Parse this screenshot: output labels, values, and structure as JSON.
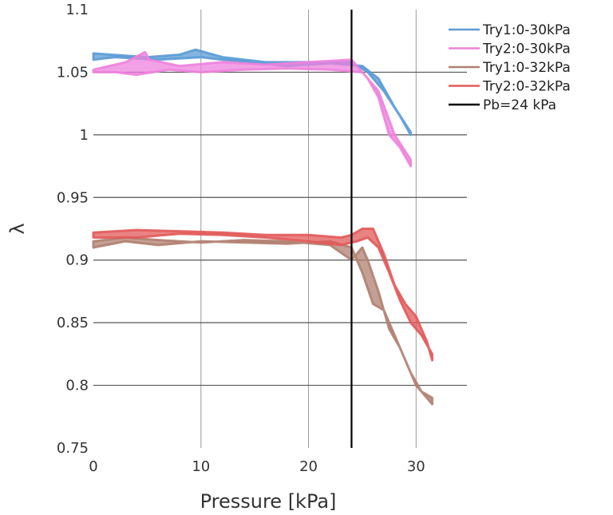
{
  "chart_data": {
    "type": "line",
    "xlabel": "Pressure [kPa]",
    "ylabel": "λ",
    "xlim": [
      0,
      32.5
    ],
    "ylim": [
      0.75,
      1.1
    ],
    "xticks": [
      "0",
      "10",
      "20",
      "30"
    ],
    "yticks": [
      "0.75",
      "0.8",
      "0.85",
      "0.9",
      "0.95",
      "1",
      "1.05",
      "1.1"
    ],
    "grid": true,
    "legend_position": "top-right",
    "reference_line": {
      "name": "Pb=24 kPa",
      "x": 24,
      "color": "#000000"
    },
    "series": [
      {
        "name": "Try1:0-30kPa",
        "color": "#5b9bd5",
        "points": [
          [
            0,
            1.065
          ],
          [
            5,
            1.062
          ],
          [
            8,
            1.064
          ],
          [
            9.5,
            1.068
          ],
          [
            12,
            1.062
          ],
          [
            16,
            1.058
          ],
          [
            20,
            1.058
          ],
          [
            24,
            1.058
          ],
          [
            25.5,
            1.05
          ],
          [
            27,
            1.035
          ],
          [
            28.5,
            1.015
          ],
          [
            29.5,
            1.0
          ],
          [
            29.5,
            1.002
          ],
          [
            28,
            1.022
          ],
          [
            26.5,
            1.045
          ],
          [
            25,
            1.055
          ],
          [
            22,
            1.057
          ],
          [
            18,
            1.055
          ],
          [
            14,
            1.058
          ],
          [
            10,
            1.062
          ],
          [
            6,
            1.06
          ],
          [
            2,
            1.062
          ],
          [
            0,
            1.06
          ]
        ]
      },
      {
        "name": "Try2:0-30kPa",
        "color": "#ee82dd",
        "points": [
          [
            0,
            1.052
          ],
          [
            3,
            1.058
          ],
          [
            4.8,
            1.066
          ],
          [
            5.2,
            1.06
          ],
          [
            8,
            1.055
          ],
          [
            12,
            1.058
          ],
          [
            16,
            1.056
          ],
          [
            20,
            1.058
          ],
          [
            24,
            1.06
          ],
          [
            25.5,
            1.045
          ],
          [
            26.5,
            1.03
          ],
          [
            27.5,
            1.0
          ],
          [
            28.5,
            0.99
          ],
          [
            29.5,
            0.975
          ],
          [
            29.5,
            0.98
          ],
          [
            28,
            1.0
          ],
          [
            26.5,
            1.035
          ],
          [
            25,
            1.05
          ],
          [
            22,
            1.052
          ],
          [
            18,
            1.053
          ],
          [
            14,
            1.052
          ],
          [
            10,
            1.05
          ],
          [
            7,
            1.052
          ],
          [
            4,
            1.048
          ],
          [
            2,
            1.05
          ],
          [
            0,
            1.05
          ]
        ]
      },
      {
        "name": "Try1:0-32kPa",
        "color": "#b08070",
        "points": [
          [
            0,
            0.91
          ],
          [
            3,
            0.915
          ],
          [
            6,
            0.912
          ],
          [
            10,
            0.915
          ],
          [
            14,
            0.914
          ],
          [
            18,
            0.913
          ],
          [
            22,
            0.915
          ],
          [
            24,
            0.91
          ],
          [
            25,
            0.89
          ],
          [
            26,
            0.865
          ],
          [
            27,
            0.86
          ],
          [
            28,
            0.84
          ],
          [
            29,
            0.82
          ],
          [
            30,
            0.8
          ],
          [
            31,
            0.79
          ],
          [
            31.5,
            0.785
          ],
          [
            31.5,
            0.79
          ],
          [
            30.5,
            0.795
          ],
          [
            29.5,
            0.81
          ],
          [
            28.5,
            0.83
          ],
          [
            27.5,
            0.845
          ],
          [
            26.5,
            0.875
          ],
          [
            25.5,
            0.9
          ],
          [
            25,
            0.91
          ],
          [
            24,
            0.9
          ],
          [
            22,
            0.912
          ],
          [
            18,
            0.915
          ],
          [
            14,
            0.916
          ],
          [
            10,
            0.914
          ],
          [
            6,
            0.916
          ],
          [
            3,
            0.918
          ],
          [
            0,
            0.915
          ]
        ]
      },
      {
        "name": "Try2:0-32kPa",
        "color": "#e25a5a",
        "points": [
          [
            0,
            0.922
          ],
          [
            4,
            0.924
          ],
          [
            8,
            0.923
          ],
          [
            12,
            0.922
          ],
          [
            16,
            0.92
          ],
          [
            20,
            0.92
          ],
          [
            23,
            0.918
          ],
          [
            24,
            0.92
          ],
          [
            25,
            0.925
          ],
          [
            26,
            0.925
          ],
          [
            27,
            0.905
          ],
          [
            28,
            0.88
          ],
          [
            29,
            0.865
          ],
          [
            30,
            0.855
          ],
          [
            31,
            0.835
          ],
          [
            31.5,
            0.82
          ],
          [
            31.5,
            0.825
          ],
          [
            30.5,
            0.84
          ],
          [
            29.5,
            0.85
          ],
          [
            28.5,
            0.868
          ],
          [
            27.5,
            0.89
          ],
          [
            26.5,
            0.91
          ],
          [
            25.5,
            0.918
          ],
          [
            24.5,
            0.915
          ],
          [
            23,
            0.912
          ],
          [
            20,
            0.915
          ],
          [
            16,
            0.918
          ],
          [
            12,
            0.92
          ],
          [
            8,
            0.921
          ],
          [
            4,
            0.918
          ],
          [
            0,
            0.918
          ]
        ]
      }
    ]
  }
}
